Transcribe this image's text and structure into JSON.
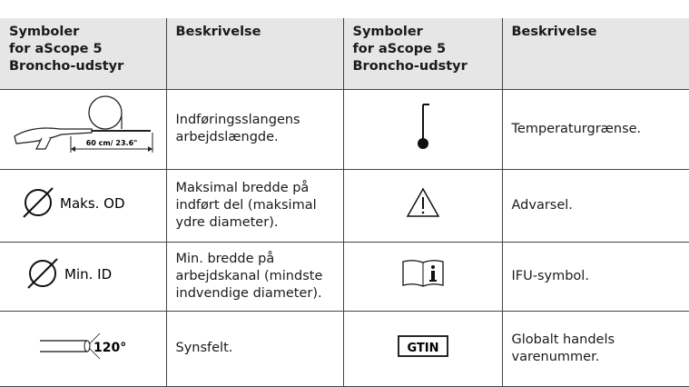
{
  "table": {
    "headers": [
      "Symboler\nfor aScope 5\nBroncho-udstyr",
      "Beskrivelse",
      "Symboler\nfor aScope 5\nBroncho-udstyr",
      "Beskrivelse"
    ],
    "rows": [
      {
        "left_symbol": "60 cm/ 23.6\"",
        "left_description": "Indføringsslangens arbejdslængde.",
        "right_description": "Temperaturgrænse."
      },
      {
        "left_symbol": "Maks. OD",
        "left_description": "Maksimal bredde på indført del (maksimal ydre diameter).",
        "right_description": "Advarsel."
      },
      {
        "left_symbol": "Min. ID",
        "left_description": "Min. bredde på arbejdskanal (mindste indvendige diameter).",
        "right_description": "IFU-symbol."
      },
      {
        "left_symbol": "120°",
        "left_description": "Synsfelt.",
        "right_symbol": "GTIN",
        "right_description": "Globalt handels varenummer."
      }
    ]
  }
}
